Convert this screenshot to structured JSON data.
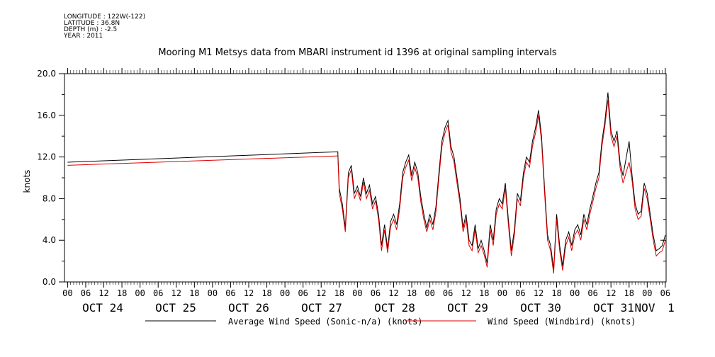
{
  "meta": {
    "longitude": "LONGITUDE : 122W(-122)",
    "latitude": "LATITUDE : 36.8N",
    "depth": "DEPTH (m) : -2.5",
    "year": "YEAR : 2011"
  },
  "chart_data": {
    "type": "line",
    "title": "Mooring M1 Metsys data from MBARI instrument id 1396 at original sampling intervals",
    "ylabel": "knots",
    "xlabel": "",
    "ylim": [
      0,
      20
    ],
    "y_ticks": [
      "0.0",
      "4.0",
      "8.0",
      "12.0",
      "16.0",
      "20.0"
    ],
    "x_range_hours": [
      0,
      198
    ],
    "hour_tick_labels": [
      "00",
      "06",
      "12",
      "18",
      "00",
      "06",
      "12",
      "18",
      "00",
      "06",
      "12",
      "18",
      "00",
      "06",
      "12",
      "18",
      "00",
      "06",
      "12",
      "18",
      "00",
      "06",
      "12",
      "18",
      "00",
      "06",
      "12",
      "18",
      "00",
      "06",
      "12",
      "18",
      "00",
      "06"
    ],
    "date_labels": [
      "OCT 24",
      "OCT 25",
      "OCT 26",
      "OCT 27",
      "OCT 28",
      "OCT 29",
      "OCT 30",
      "OCT 31",
      "NOV",
      "1"
    ],
    "legend": {
      "placement": "bottom"
    },
    "series": [
      {
        "name": "Average Wind Speed (Sonic-n/a) (knots)",
        "color": "#000000",
        "points": [
          [
            0,
            11.5
          ],
          [
            89.5,
            12.5
          ],
          [
            90,
            9
          ],
          [
            91,
            7.5
          ],
          [
            92,
            5.2
          ],
          [
            93,
            10.5
          ],
          [
            94,
            11.2
          ],
          [
            95,
            8.5
          ],
          [
            96,
            9.2
          ],
          [
            97,
            8.2
          ],
          [
            98,
            10
          ],
          [
            99,
            8.5
          ],
          [
            100,
            9.3
          ],
          [
            101,
            7.5
          ],
          [
            102,
            8.2
          ],
          [
            103,
            6.5
          ],
          [
            104,
            3.5
          ],
          [
            105,
            5.5
          ],
          [
            106,
            3.2
          ],
          [
            107,
            5.8
          ],
          [
            108,
            6.5
          ],
          [
            109,
            5.5
          ],
          [
            110,
            7.5
          ],
          [
            111,
            10.5
          ],
          [
            112,
            11.5
          ],
          [
            113,
            12.2
          ],
          [
            114,
            10.2
          ],
          [
            115,
            11.5
          ],
          [
            116,
            10.5
          ],
          [
            117,
            8.2
          ],
          [
            118,
            6.5
          ],
          [
            119,
            5.2
          ],
          [
            120,
            6.5
          ],
          [
            121,
            5.5
          ],
          [
            122,
            7.2
          ],
          [
            123,
            10.5
          ],
          [
            124,
            13.5
          ],
          [
            125,
            14.8
          ],
          [
            126,
            15.5
          ],
          [
            127,
            13
          ],
          [
            128,
            12
          ],
          [
            129,
            10
          ],
          [
            130,
            8
          ],
          [
            131,
            5.2
          ],
          [
            132,
            6.5
          ],
          [
            133,
            4
          ],
          [
            134,
            3.5
          ],
          [
            135,
            5.5
          ],
          [
            136,
            3.2
          ],
          [
            137,
            4
          ],
          [
            138,
            3
          ],
          [
            139,
            1.8
          ],
          [
            140,
            5.5
          ],
          [
            141,
            4
          ],
          [
            142,
            7
          ],
          [
            143,
            8
          ],
          [
            144,
            7.5
          ],
          [
            145,
            9.5
          ],
          [
            146,
            6
          ],
          [
            147,
            3
          ],
          [
            148,
            5
          ],
          [
            149,
            8.5
          ],
          [
            150,
            7.8
          ],
          [
            151,
            10.5
          ],
          [
            152,
            12
          ],
          [
            153,
            11.5
          ],
          [
            154,
            13.5
          ],
          [
            155,
            14.8
          ],
          [
            156,
            16.5
          ],
          [
            157,
            14
          ],
          [
            158,
            9
          ],
          [
            159,
            4.5
          ],
          [
            160,
            3.5
          ],
          [
            161,
            1.2
          ],
          [
            162,
            6.5
          ],
          [
            163,
            3.5
          ],
          [
            164,
            1.5
          ],
          [
            165,
            4
          ],
          [
            166,
            4.8
          ],
          [
            167,
            3.5
          ],
          [
            168,
            5
          ],
          [
            169,
            5.5
          ],
          [
            170,
            4.5
          ],
          [
            171,
            6.5
          ],
          [
            172,
            5.5
          ],
          [
            173,
            7
          ],
          [
            174,
            8.2
          ],
          [
            175,
            9.5
          ],
          [
            176,
            10.5
          ],
          [
            177,
            13.5
          ],
          [
            178,
            15.5
          ],
          [
            179,
            18.2
          ],
          [
            180,
            14.5
          ],
          [
            181,
            13.5
          ],
          [
            182,
            14.5
          ],
          [
            183,
            11.5
          ],
          [
            184,
            10.2
          ],
          [
            186,
            13.5
          ],
          [
            187,
            10.2
          ],
          [
            188,
            7.5
          ],
          [
            189,
            6.5
          ],
          [
            190,
            6.8
          ],
          [
            191,
            9.5
          ],
          [
            192,
            8.5
          ],
          [
            193,
            6.5
          ],
          [
            194,
            4.5
          ],
          [
            195,
            3
          ],
          [
            196,
            3.2
          ],
          [
            197,
            3.5
          ],
          [
            198,
            4.5
          ]
        ]
      },
      {
        "name": "Wind Speed (Windbird) (knots)",
        "color": "#dd0000",
        "points": [
          [
            0,
            11.2
          ],
          [
            89.5,
            12.1
          ],
          [
            90,
            8.5
          ],
          [
            91,
            7
          ],
          [
            92,
            4.8
          ],
          [
            93,
            10
          ],
          [
            94,
            10.8
          ],
          [
            95,
            8
          ],
          [
            96,
            8.8
          ],
          [
            97,
            7.8
          ],
          [
            98,
            9.6
          ],
          [
            99,
            8
          ],
          [
            100,
            8.8
          ],
          [
            101,
            7
          ],
          [
            102,
            7.8
          ],
          [
            103,
            6
          ],
          [
            104,
            3
          ],
          [
            105,
            5
          ],
          [
            106,
            2.8
          ],
          [
            107,
            5.3
          ],
          [
            108,
            6
          ],
          [
            109,
            5
          ],
          [
            110,
            7
          ],
          [
            111,
            10
          ],
          [
            112,
            11
          ],
          [
            113,
            11.7
          ],
          [
            114,
            9.7
          ],
          [
            115,
            11
          ],
          [
            116,
            10
          ],
          [
            117,
            7.7
          ],
          [
            118,
            6
          ],
          [
            119,
            4.8
          ],
          [
            120,
            6
          ],
          [
            121,
            5
          ],
          [
            122,
            6.7
          ],
          [
            123,
            10
          ],
          [
            124,
            13
          ],
          [
            125,
            14.3
          ],
          [
            126,
            15.1
          ],
          [
            127,
            12.5
          ],
          [
            128,
            11.5
          ],
          [
            129,
            9.5
          ],
          [
            130,
            7.5
          ],
          [
            131,
            4.8
          ],
          [
            132,
            6
          ],
          [
            133,
            3.5
          ],
          [
            134,
            3
          ],
          [
            135,
            5
          ],
          [
            136,
            2.8
          ],
          [
            137,
            3.5
          ],
          [
            138,
            2.6
          ],
          [
            139,
            1.4
          ],
          [
            140,
            5
          ],
          [
            141,
            3.5
          ],
          [
            142,
            6.5
          ],
          [
            143,
            7.5
          ],
          [
            144,
            7
          ],
          [
            145,
            9
          ],
          [
            146,
            5.5
          ],
          [
            147,
            2.5
          ],
          [
            148,
            4.5
          ],
          [
            149,
            8
          ],
          [
            150,
            7.3
          ],
          [
            151,
            10
          ],
          [
            152,
            11.5
          ],
          [
            153,
            11
          ],
          [
            154,
            13
          ],
          [
            155,
            14.3
          ],
          [
            156,
            16
          ],
          [
            157,
            13.5
          ],
          [
            158,
            8.5
          ],
          [
            159,
            4
          ],
          [
            160,
            3
          ],
          [
            161,
            0.8
          ],
          [
            162,
            6
          ],
          [
            163,
            3
          ],
          [
            164,
            1.1
          ],
          [
            165,
            3.5
          ],
          [
            166,
            4.3
          ],
          [
            167,
            3
          ],
          [
            168,
            4.5
          ],
          [
            169,
            5
          ],
          [
            170,
            4
          ],
          [
            171,
            6
          ],
          [
            172,
            5
          ],
          [
            173,
            6.5
          ],
          [
            174,
            7.7
          ],
          [
            175,
            9
          ],
          [
            176,
            10
          ],
          [
            177,
            13
          ],
          [
            178,
            15
          ],
          [
            179,
            17.5
          ],
          [
            180,
            14
          ],
          [
            181,
            13
          ],
          [
            182,
            14
          ],
          [
            183,
            11
          ],
          [
            184,
            9.5
          ],
          [
            186,
            11.5
          ],
          [
            187,
            9.7
          ],
          [
            188,
            7
          ],
          [
            189,
            6
          ],
          [
            190,
            6.3
          ],
          [
            191,
            9
          ],
          [
            192,
            8
          ],
          [
            193,
            6
          ],
          [
            194,
            4
          ],
          [
            195,
            2.5
          ],
          [
            196,
            2.8
          ],
          [
            197,
            3
          ],
          [
            198,
            4
          ]
        ]
      }
    ]
  }
}
